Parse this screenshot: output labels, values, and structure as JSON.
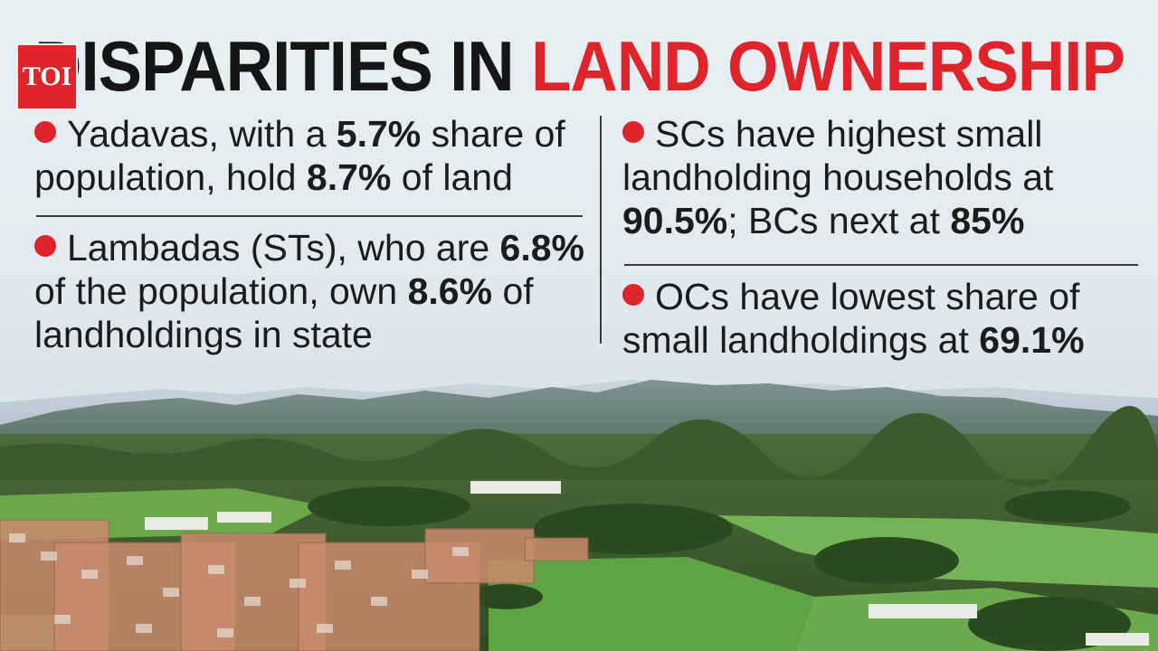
{
  "logo": {
    "text": "TOI"
  },
  "title": {
    "part1": "DISPARITIES IN",
    "part2": "LAND OWNERSHIP"
  },
  "bullets": [
    {
      "segments": [
        {
          "t": "Yadavas, with a ",
          "b": false
        },
        {
          "t": "5.7%",
          "b": true
        },
        {
          "t": " share of population, hold ",
          "b": false
        },
        {
          "t": "8.7%",
          "b": true
        },
        {
          "t": " of land",
          "b": false
        }
      ]
    },
    {
      "segments": [
        {
          "t": "Lambadas (STs), who are ",
          "b": false
        },
        {
          "t": "6.8%",
          "b": true
        },
        {
          "t": " of the population, own ",
          "b": false
        },
        {
          "t": "8.6%",
          "b": true
        },
        {
          "t": " of landholdings in state",
          "b": false
        }
      ]
    },
    {
      "segments": [
        {
          "t": "SCs have highest small landholding households at ",
          "b": false
        },
        {
          "t": "90.5%",
          "b": true
        },
        {
          "t": "; BCs next at ",
          "b": false
        },
        {
          "t": "85%",
          "b": true
        }
      ]
    },
    {
      "segments": [
        {
          "t": "OCs have lowest share of small landholdings at ",
          "b": false
        },
        {
          "t": "69.1%",
          "b": true
        }
      ]
    }
  ],
  "colors": {
    "accent": "#e0242b",
    "text": "#1c1c1c"
  },
  "image": {
    "description_icon": "landscape-photo"
  }
}
